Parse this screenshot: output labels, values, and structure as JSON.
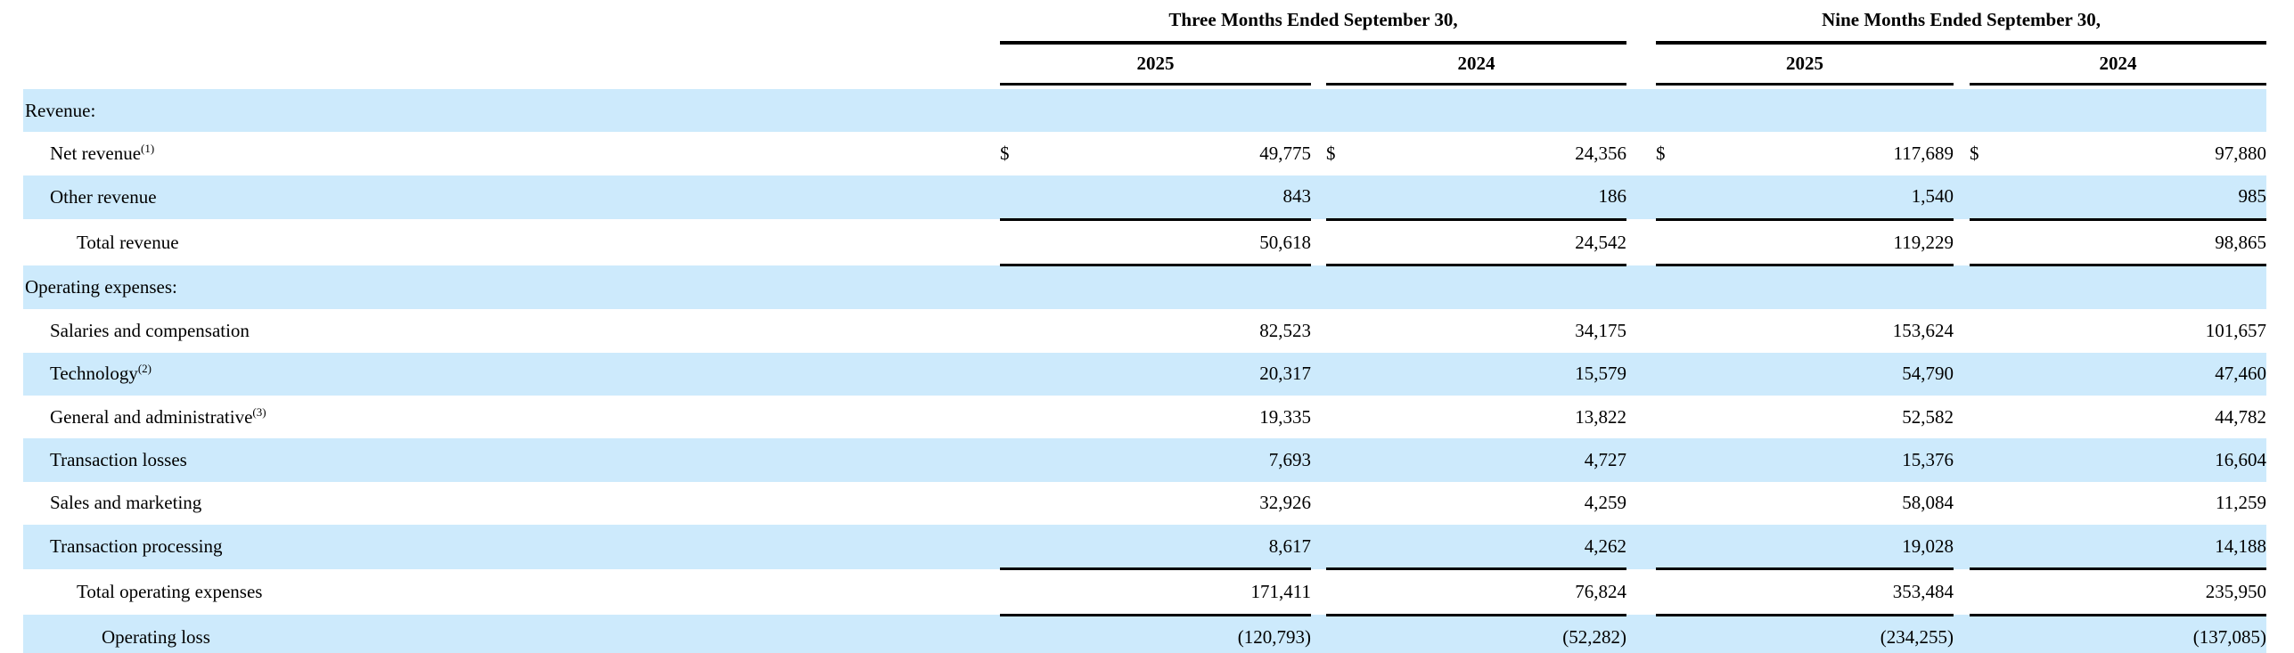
{
  "table": {
    "currency_symbol": "$",
    "colors": {
      "stripe": "#cdeafc",
      "rule": "#000000",
      "text": "#000000"
    },
    "groups": [
      {
        "title": "Three Months Ended September 30,",
        "years": [
          "2025",
          "2024"
        ]
      },
      {
        "title": "Nine Months Ended September 30,",
        "years": [
          "2025",
          "2024"
        ]
      }
    ],
    "rows": [
      {
        "label": "Revenue:",
        "indent": 0,
        "shaded": true,
        "section": true,
        "currency": false,
        "values": [
          "",
          "",
          "",
          ""
        ]
      },
      {
        "label": "Net revenue",
        "sup": "(1)",
        "indent": 1,
        "shaded": false,
        "currency": true,
        "values": [
          "49,775",
          "24,356",
          "117,689",
          "97,880"
        ]
      },
      {
        "label": "Other revenue",
        "indent": 1,
        "shaded": true,
        "currency": false,
        "values": [
          "843",
          "186",
          "1,540",
          "985"
        ],
        "rule_below": true
      },
      {
        "label": "Total revenue",
        "indent": 2,
        "shaded": false,
        "currency": false,
        "values": [
          "50,618",
          "24,542",
          "119,229",
          "98,865"
        ],
        "rule_below": true
      },
      {
        "label": "Operating expenses:",
        "indent": 0,
        "shaded": true,
        "section": true,
        "currency": false,
        "values": [
          "",
          "",
          "",
          ""
        ]
      },
      {
        "label": "Salaries and compensation",
        "indent": 1,
        "shaded": false,
        "currency": false,
        "values": [
          "82,523",
          "34,175",
          "153,624",
          "101,657"
        ]
      },
      {
        "label": "Technology",
        "sup": "(2)",
        "indent": 1,
        "shaded": true,
        "currency": false,
        "values": [
          "20,317",
          "15,579",
          "54,790",
          "47,460"
        ]
      },
      {
        "label": "General and administrative",
        "sup": "(3)",
        "indent": 1,
        "shaded": false,
        "currency": false,
        "values": [
          "19,335",
          "13,822",
          "52,582",
          "44,782"
        ]
      },
      {
        "label": "Transaction losses",
        "indent": 1,
        "shaded": true,
        "currency": false,
        "values": [
          "7,693",
          "4,727",
          "15,376",
          "16,604"
        ]
      },
      {
        "label": "Sales and marketing",
        "indent": 1,
        "shaded": false,
        "currency": false,
        "values": [
          "32,926",
          "4,259",
          "58,084",
          "11,259"
        ]
      },
      {
        "label": "Transaction processing",
        "indent": 1,
        "shaded": true,
        "currency": false,
        "values": [
          "8,617",
          "4,262",
          "19,028",
          "14,188"
        ],
        "rule_below": true
      },
      {
        "label": "Total operating expenses",
        "indent": 2,
        "shaded": false,
        "currency": false,
        "values": [
          "171,411",
          "76,824",
          "353,484",
          "235,950"
        ],
        "rule_below": true
      },
      {
        "label": "Operating loss",
        "indent": 3,
        "shaded": true,
        "currency": false,
        "values": [
          "(120,793)",
          "(52,282)",
          "(234,255)",
          "(137,085)"
        ],
        "rule_below": true
      }
    ]
  }
}
